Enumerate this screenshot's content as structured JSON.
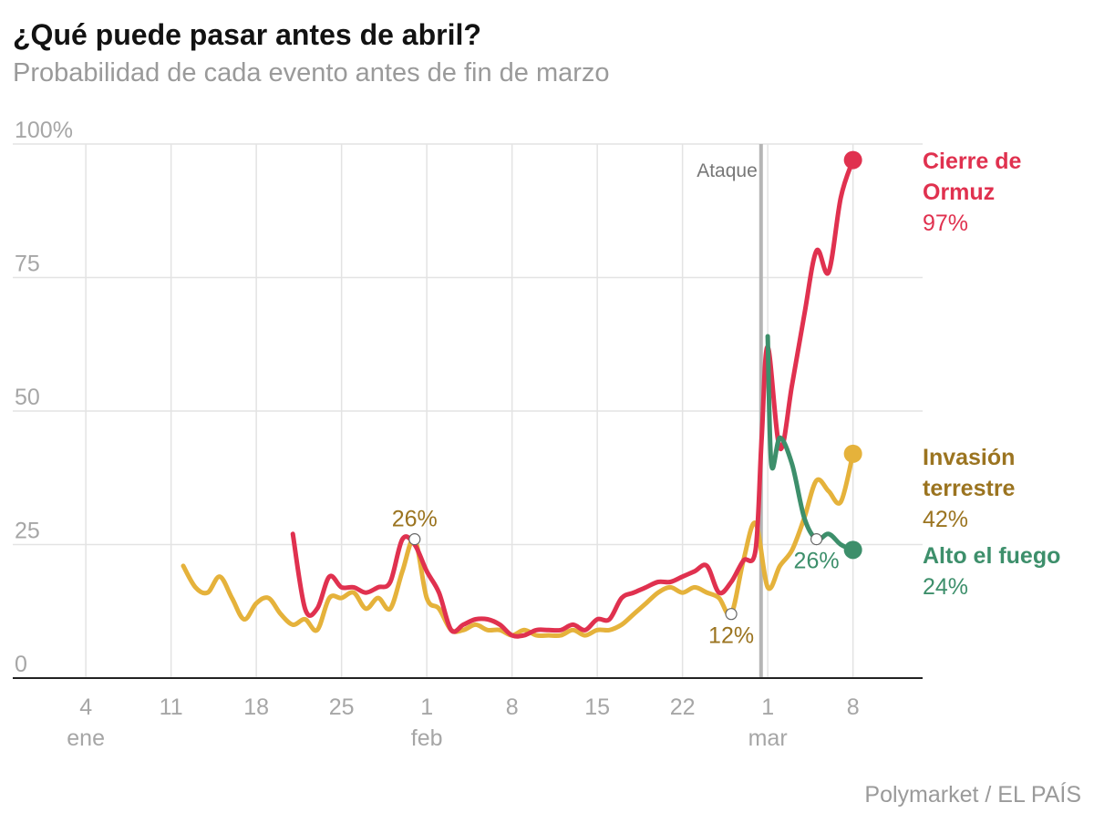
{
  "header": {
    "title": "¿Qué puede pasar antes de abril?",
    "subtitle": "Probabilidad de cada evento antes de fin de marzo"
  },
  "footer": {
    "source": "Polymarket / EL PAÍS"
  },
  "chart_data": {
    "type": "line",
    "title": "¿Qué puede pasar antes de abril?",
    "subtitle": "Probabilidad de cada evento antes de fin de marzo",
    "xlabel": "",
    "ylabel": "",
    "xlim": [
      "2025-12-29",
      "2026-03-10"
    ],
    "ylim": [
      0,
      100
    ],
    "grid": true,
    "y_ticks": [
      {
        "value": 100,
        "label": "100%"
      },
      {
        "value": 75,
        "label": "75"
      },
      {
        "value": 50,
        "label": "50"
      },
      {
        "value": 25,
        "label": "25"
      },
      {
        "value": 0,
        "label": "0"
      }
    ],
    "x_ticks": [
      {
        "date": "2026-01-04",
        "label": "4",
        "month": "ene"
      },
      {
        "date": "2026-01-11",
        "label": "11",
        "month": ""
      },
      {
        "date": "2026-01-18",
        "label": "18",
        "month": ""
      },
      {
        "date": "2026-01-25",
        "label": "25",
        "month": ""
      },
      {
        "date": "2026-02-01",
        "label": "1",
        "month": "feb"
      },
      {
        "date": "2026-02-08",
        "label": "8",
        "month": ""
      },
      {
        "date": "2026-02-15",
        "label": "15",
        "month": ""
      },
      {
        "date": "2026-02-22",
        "label": "22",
        "month": ""
      },
      {
        "date": "2026-03-01",
        "label": "1",
        "month": "mar"
      },
      {
        "date": "2026-03-08",
        "label": "8",
        "month": ""
      }
    ],
    "events": [
      {
        "date": "2026-02-28",
        "label": "Ataque"
      }
    ],
    "series": [
      {
        "name": "Invasión terrestre",
        "label_lines": [
          "Invasión",
          "terrestre"
        ],
        "end_label": "42%",
        "color": "#e5b23b",
        "text_color": "#9b7420",
        "points": [
          [
            "2026-01-12",
            21
          ],
          [
            "2026-01-13",
            17
          ],
          [
            "2026-01-14",
            16
          ],
          [
            "2026-01-15",
            19
          ],
          [
            "2026-01-16",
            15
          ],
          [
            "2026-01-17",
            11
          ],
          [
            "2026-01-18",
            14
          ],
          [
            "2026-01-19",
            15
          ],
          [
            "2026-01-20",
            12
          ],
          [
            "2026-01-21",
            10
          ],
          [
            "2026-01-22",
            11
          ],
          [
            "2026-01-23",
            9
          ],
          [
            "2026-01-24",
            15
          ],
          [
            "2026-01-25",
            15
          ],
          [
            "2026-01-26",
            16
          ],
          [
            "2026-01-27",
            13
          ],
          [
            "2026-01-28",
            15
          ],
          [
            "2026-01-29",
            13
          ],
          [
            "2026-01-30",
            20
          ],
          [
            "2026-01-31",
            26
          ],
          [
            "2026-02-01",
            15
          ],
          [
            "2026-02-02",
            13
          ],
          [
            "2026-02-03",
            9
          ],
          [
            "2026-02-04",
            9
          ],
          [
            "2026-02-05",
            10
          ],
          [
            "2026-02-06",
            9
          ],
          [
            "2026-02-07",
            9
          ],
          [
            "2026-02-08",
            8
          ],
          [
            "2026-02-09",
            9
          ],
          [
            "2026-02-10",
            8
          ],
          [
            "2026-02-11",
            8
          ],
          [
            "2026-02-12",
            8
          ],
          [
            "2026-02-13",
            9
          ],
          [
            "2026-02-14",
            8
          ],
          [
            "2026-02-15",
            9
          ],
          [
            "2026-02-16",
            9
          ],
          [
            "2026-02-17",
            10
          ],
          [
            "2026-02-18",
            12
          ],
          [
            "2026-02-19",
            14
          ],
          [
            "2026-02-20",
            16
          ],
          [
            "2026-02-21",
            17
          ],
          [
            "2026-02-22",
            16
          ],
          [
            "2026-02-23",
            17
          ],
          [
            "2026-02-24",
            16
          ],
          [
            "2026-02-25",
            15
          ],
          [
            "2026-02-26",
            12
          ],
          [
            "2026-02-27",
            22
          ],
          [
            "2026-02-28",
            29
          ],
          [
            "2026-03-01",
            17
          ],
          [
            "2026-03-02",
            21
          ],
          [
            "2026-03-03",
            24
          ],
          [
            "2026-03-04",
            30
          ],
          [
            "2026-03-05",
            37
          ],
          [
            "2026-03-06",
            35
          ],
          [
            "2026-03-07",
            33
          ],
          [
            "2026-03-08",
            42
          ]
        ]
      },
      {
        "name": "Cierre de Ormuz",
        "label_lines": [
          "Cierre de",
          "Ormuz"
        ],
        "end_label": "97%",
        "color": "#e0314f",
        "text_color": "#e0314f",
        "points": [
          [
            "2026-01-21",
            27
          ],
          [
            "2026-01-22",
            13
          ],
          [
            "2026-01-23",
            13
          ],
          [
            "2026-01-24",
            19
          ],
          [
            "2026-01-25",
            17
          ],
          [
            "2026-01-26",
            17
          ],
          [
            "2026-01-27",
            16
          ],
          [
            "2026-01-28",
            17
          ],
          [
            "2026-01-29",
            18
          ],
          [
            "2026-01-30",
            26
          ],
          [
            "2026-01-31",
            25
          ],
          [
            "2026-02-01",
            20
          ],
          [
            "2026-02-02",
            16
          ],
          [
            "2026-02-03",
            9
          ],
          [
            "2026-02-04",
            10
          ],
          [
            "2026-02-05",
            11
          ],
          [
            "2026-02-06",
            11
          ],
          [
            "2026-02-07",
            10
          ],
          [
            "2026-02-08",
            8
          ],
          [
            "2026-02-09",
            8
          ],
          [
            "2026-02-10",
            9
          ],
          [
            "2026-02-11",
            9
          ],
          [
            "2026-02-12",
            9
          ],
          [
            "2026-02-13",
            10
          ],
          [
            "2026-02-14",
            9
          ],
          [
            "2026-02-15",
            11
          ],
          [
            "2026-02-16",
            11
          ],
          [
            "2026-02-17",
            15
          ],
          [
            "2026-02-18",
            16
          ],
          [
            "2026-02-19",
            17
          ],
          [
            "2026-02-20",
            18
          ],
          [
            "2026-02-21",
            18
          ],
          [
            "2026-02-22",
            19
          ],
          [
            "2026-02-23",
            20
          ],
          [
            "2026-02-24",
            21
          ],
          [
            "2026-02-25",
            16
          ],
          [
            "2026-02-26",
            18
          ],
          [
            "2026-02-27",
            22
          ],
          [
            "2026-02-28",
            24
          ],
          [
            "2026-02-28.5",
            45
          ],
          [
            "2026-03-01",
            62
          ],
          [
            "2026-03-02",
            43
          ],
          [
            "2026-03-03",
            55
          ],
          [
            "2026-03-04",
            68
          ],
          [
            "2026-03-05",
            80
          ],
          [
            "2026-03-06",
            76
          ],
          [
            "2026-03-07",
            90
          ],
          [
            "2026-03-08",
            97
          ]
        ]
      },
      {
        "name": "Alto el fuego",
        "label_lines": [
          "Alto el fuego"
        ],
        "end_label": "24%",
        "color": "#3d8f6b",
        "text_color": "#3d8f6b",
        "points": [
          [
            "2026-03-01",
            64
          ],
          [
            "2026-03-01.3",
            40
          ],
          [
            "2026-03-02",
            45
          ],
          [
            "2026-03-03",
            40
          ],
          [
            "2026-03-04",
            30
          ],
          [
            "2026-03-05",
            26
          ],
          [
            "2026-03-06",
            27
          ],
          [
            "2026-03-07",
            25
          ],
          [
            "2026-03-08",
            24
          ]
        ]
      }
    ],
    "annotations": [
      {
        "series": "Invasión terrestre",
        "date": "2026-01-31",
        "value": 26,
        "label": "26%",
        "position": "above"
      },
      {
        "series": "Invasión terrestre",
        "date": "2026-02-26",
        "value": 12,
        "label": "12%",
        "position": "below"
      },
      {
        "series": "Alto el fuego",
        "date": "2026-03-05",
        "value": 26,
        "label": "26%",
        "position": "below"
      }
    ]
  }
}
